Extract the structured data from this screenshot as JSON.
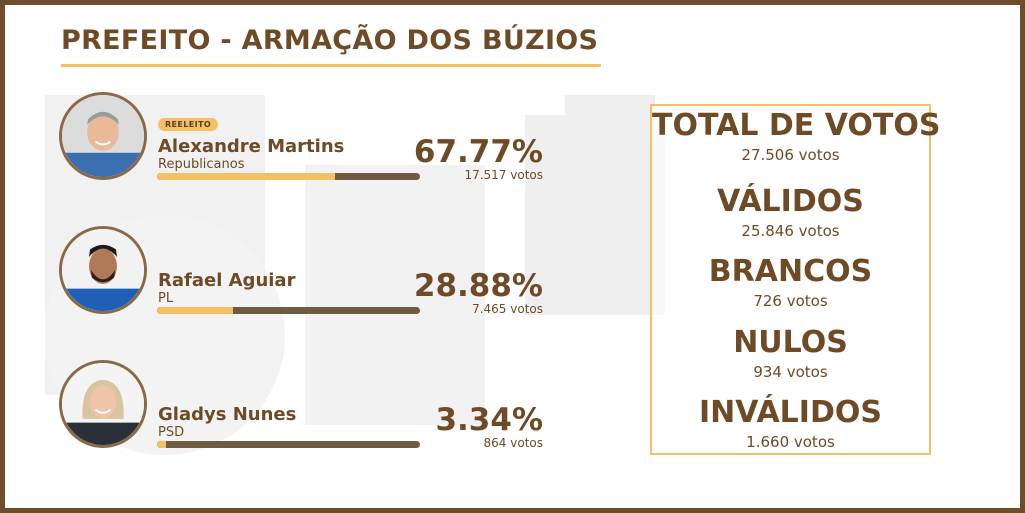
{
  "title": "PREFEITO - ARMAÇÃO DOS BÚZIOS",
  "candidates": [
    {
      "badge": "REELEITO",
      "name": "Alexandre Martins",
      "party": "Republicanos",
      "percent": "67.77%",
      "votes": "17.517 votos",
      "share": 0.6777
    },
    {
      "badge": "",
      "name": "Rafael Aguiar",
      "party": "PL",
      "percent": "28.88%",
      "votes": "7.465 votos",
      "share": 0.2888
    },
    {
      "badge": "",
      "name": "Gladys Nunes",
      "party": "PSD",
      "percent": "3.34%",
      "votes": "864 votos",
      "share": 0.0334
    }
  ],
  "totals": [
    {
      "label": "TOTAL DE VOTOS",
      "value": "27.506 votos"
    },
    {
      "label": "VÁLIDOS",
      "value": "25.846 votos"
    },
    {
      "label": "BRANCOS",
      "value": "726 votos"
    },
    {
      "label": "NULOS",
      "value": "934 votos"
    },
    {
      "label": "INVÁLIDOS",
      "value": "1.660 votos"
    }
  ],
  "colors": {
    "brown": "#6e4a26",
    "gold": "#f3c063",
    "bar_track": "#6f5a44",
    "frame": "#6e4c2c"
  },
  "icons": [
    "candidate-photo-alexandre",
    "candidate-photo-rafael",
    "candidate-photo-gladys"
  ]
}
